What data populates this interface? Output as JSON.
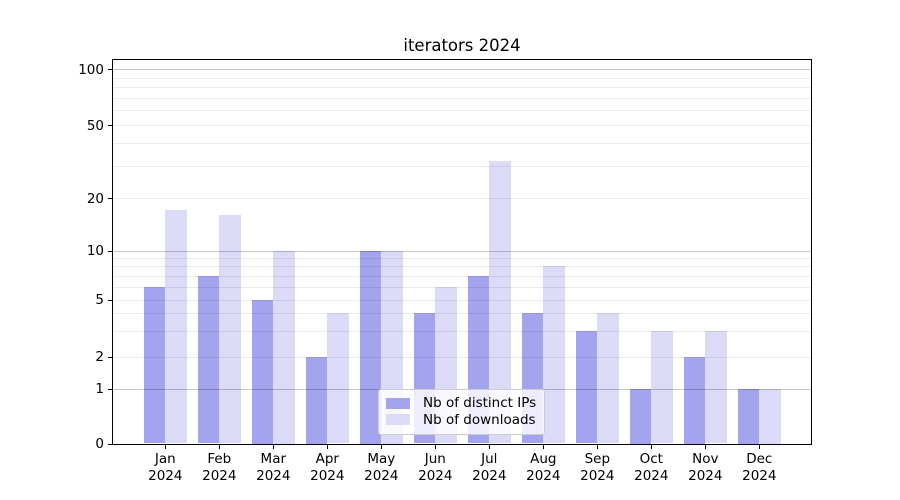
{
  "chart_data": {
    "type": "bar",
    "title": "iterators 2024",
    "categories": [
      "Jan",
      "Feb",
      "Mar",
      "Apr",
      "May",
      "Jun",
      "Jul",
      "Aug",
      "Sep",
      "Oct",
      "Nov",
      "Dec"
    ],
    "category_year": "2024",
    "series": [
      {
        "name": "Nb of distinct IPs",
        "color": "#a3a3ee",
        "values": [
          6,
          7,
          5,
          2,
          10,
          4,
          7,
          4,
          3,
          1,
          2,
          1
        ]
      },
      {
        "name": "Nb of downloads",
        "color": "#dbdbf7",
        "values": [
          17,
          16,
          10,
          4,
          10,
          6,
          32,
          8,
          4,
          3,
          3,
          1
        ]
      }
    ],
    "xlabel": "",
    "ylabel": "",
    "yscale": "symlog",
    "ylim": [
      0,
      113
    ],
    "yticks": [
      0,
      1,
      2,
      5,
      10,
      20,
      50,
      100
    ],
    "major_grid_values": [
      1,
      10,
      100
    ],
    "minor_grid_values": [
      2,
      3,
      4,
      5,
      6,
      7,
      8,
      9,
      20,
      30,
      40,
      50,
      60,
      70,
      80,
      90
    ],
    "grid": true,
    "grid_above_bars": true,
    "legend_position": "lower center",
    "colors": {
      "axis": "#000000",
      "major_grid": "rgba(0,0,0,0.22)",
      "minor_grid": "rgba(0,0,0,0.08)",
      "legend_border": "#cccccc",
      "legend_background": "rgba(255,255,255,0.8)",
      "background": "#ffffff",
      "text": "#000000"
    }
  }
}
